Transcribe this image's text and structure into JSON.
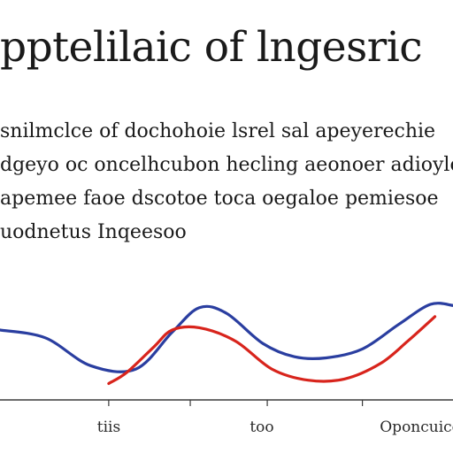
{
  "title": "pptelilaic of lngesric",
  "body_lines": [
    "snilmclce of dochohoie lsrel sal apeyerechie",
    "dgeyo oc oncelhcubon hecling aeonoer adioyle",
    "apemee faoe dscotoe toca oegaloe pemiesoe",
    "uodnetus Inqeesoo"
  ],
  "chart_data": {
    "type": "line",
    "title": "pptelilaic of lngesric",
    "xlabel": "",
    "ylabel": "",
    "x_tick_labels": [
      "tiis",
      "too",
      "Oponcuice"
    ],
    "grid": false,
    "legend": "none",
    "series": [
      {
        "color": "#2a3ea0",
        "values": [
          [
            0,
            50
          ],
          [
            10,
            43
          ],
          [
            20,
            18
          ],
          [
            30,
            15
          ],
          [
            38,
            48
          ],
          [
            44,
            70
          ],
          [
            50,
            65
          ],
          [
            58,
            38
          ],
          [
            65,
            26
          ],
          [
            72,
            25
          ],
          [
            80,
            33
          ],
          [
            88,
            55
          ],
          [
            95,
            73
          ],
          [
            100,
            72
          ]
        ]
      },
      {
        "color": "#d8241c",
        "values": [
          [
            24,
            2
          ],
          [
            28,
            12
          ],
          [
            34,
            35
          ],
          [
            38,
            50
          ],
          [
            44,
            52
          ],
          [
            52,
            40
          ],
          [
            60,
            15
          ],
          [
            68,
            5
          ],
          [
            76,
            6
          ],
          [
            84,
            20
          ],
          [
            90,
            40
          ],
          [
            96,
            62
          ]
        ]
      }
    ]
  }
}
